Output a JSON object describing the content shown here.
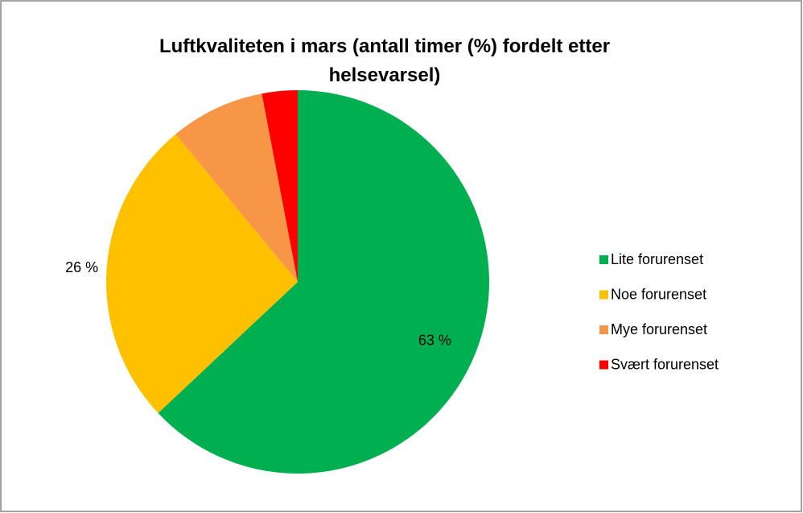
{
  "chart_data": {
    "type": "pie",
    "title": "Luftkvaliteten i mars (antall timer (%) fordelt etter helsevarsel)",
    "categories": [
      "Lite forurenset",
      "Noe forurenset",
      "Mye forurenset",
      "Svært forurenset"
    ],
    "values": [
      63,
      26,
      8,
      3
    ],
    "value_labels": [
      "63 %",
      "26 %",
      null,
      null
    ],
    "colors": [
      "#00b050",
      "#ffc000",
      "#f79646",
      "#ff0000"
    ],
    "legend": "right"
  }
}
